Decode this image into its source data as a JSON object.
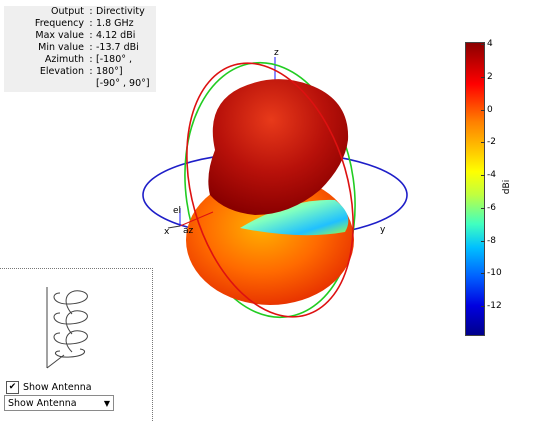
{
  "info": {
    "rows": [
      {
        "key": "Output",
        "value": "Directivity"
      },
      {
        "key": "Frequency",
        "value": "1.8 GHz"
      },
      {
        "key": "Max value",
        "value": "4.12 dBi"
      },
      {
        "key": "Min value",
        "value": "-13.7 dBi"
      },
      {
        "key": "Azimuth",
        "value": "[-180° ,"
      },
      {
        "key": "Elevation",
        "value": "180°]"
      }
    ],
    "extra": "[-90° , 90°]"
  },
  "axes": {
    "x": "x",
    "y": "y",
    "z": "z",
    "el": "el",
    "az": "az"
  },
  "colorbar": {
    "ticks": [
      "4",
      "2",
      "0",
      "-2",
      "-4",
      "-6",
      "-8",
      "-10",
      "-12"
    ],
    "unit": "dBi",
    "max": 4.12,
    "min": -13.7
  },
  "controls": {
    "show_antenna_label": "Show Antenna",
    "show_antenna_checked": true,
    "view_select_value": "Show Antenna"
  }
}
